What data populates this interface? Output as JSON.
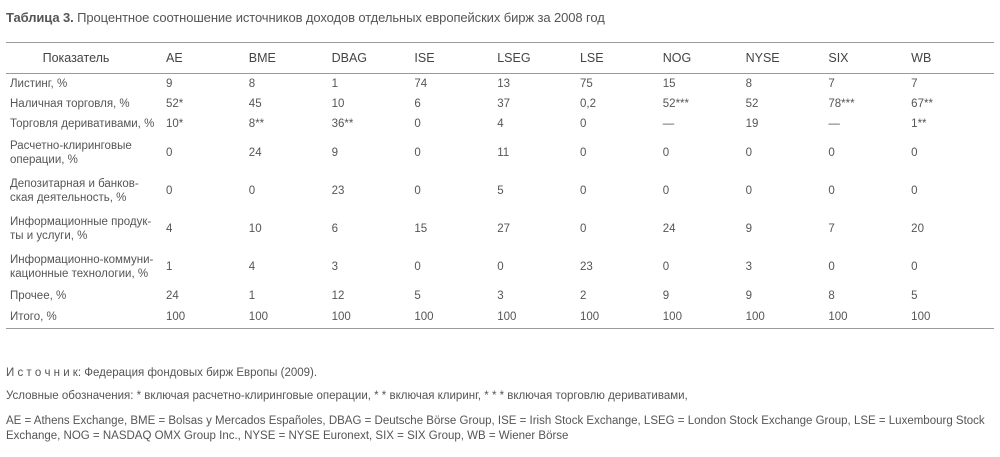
{
  "caption": {
    "label": "Таблица 3.",
    "text": " Процентное соотношение источников доходов отдельных европейских бирж за 2008 год"
  },
  "table": {
    "headers": [
      "Показатель",
      "AE",
      "BME",
      "DBAG",
      "ISE",
      "LSEG",
      "LSE",
      "NOG",
      "NYSE",
      "SIX",
      "WB"
    ],
    "rows": [
      {
        "label": "Листинг, %",
        "values": [
          "9",
          "8",
          "1",
          "74",
          "13",
          "75",
          "15",
          "8",
          "7",
          "7"
        ]
      },
      {
        "label": "Наличная торговля, %",
        "values": [
          "52*",
          "45",
          "10",
          "6",
          "37",
          "0,2",
          "52***",
          "52",
          "78***",
          "67**"
        ]
      },
      {
        "label": "Торговля деривативами, %",
        "values": [
          "10*",
          "8**",
          "36**",
          "0",
          "4",
          "0",
          "—",
          "19",
          "—",
          "1**"
        ]
      },
      {
        "label": "Расчетно-клиринговые операции, %",
        "values": [
          "0",
          "24",
          "9",
          "0",
          "11",
          "0",
          "0",
          "0",
          "0",
          "0"
        ]
      },
      {
        "label": "Депозитарная и банковская деятельность, %",
        "values": [
          "0",
          "0",
          "23",
          "0",
          "5",
          "0",
          "0",
          "0",
          "0",
          "0"
        ]
      },
      {
        "label": "Информационные продукты и услуги, %",
        "values": [
          "4",
          "10",
          "6",
          "15",
          "27",
          "0",
          "24",
          "9",
          "7",
          "20"
        ]
      },
      {
        "label": "Информационно-коммуникационные технологии, %",
        "values": [
          "1",
          "4",
          "3",
          "0",
          "0",
          "23",
          "0",
          "3",
          "0",
          "0"
        ]
      },
      {
        "label": "Прочее, %",
        "values": [
          "24",
          "1",
          "12",
          "5",
          "3",
          "2",
          "9",
          "9",
          "8",
          "5"
        ]
      },
      {
        "label": "Итого, %",
        "values": [
          "100",
          "100",
          "100",
          "100",
          "100",
          "100",
          "100",
          "100",
          "100",
          "100"
        ]
      }
    ],
    "label_lines": {
      "3": [
        "Расчетно-клиринговые",
        "операции, %"
      ],
      "4": [
        "Депозитарная и банков-",
        "ская деятельность, %"
      ],
      "5": [
        "Информационные продук-",
        "ты и услуги, %"
      ],
      "6": [
        "Информационно-коммуни-",
        "кационные технологии, %"
      ]
    }
  },
  "notes": {
    "source_label": "И с т о ч н и к:",
    "source_text": " Федерация фондовых бирж Европы (2009).",
    "conventions": "Условные обозначения: * включая расчетно-клиринговые операции, * * включая клиринг, * * * включая торговлю деривативами,",
    "abbreviations": "AE = Athens Exchange, BME = Bolsas y Mercados Españoles, DBAG = Deutsche Börse Group, ISE = Irish Stock Exchange, LSEG = London Stock Exchange Group, LSE = Luxembourg Stock Exchange, NOG = NASDAQ OMX Group Inc., NYSE = NYSE Euronext, SIX = SIX Group, WB = Wiener Börse"
  }
}
